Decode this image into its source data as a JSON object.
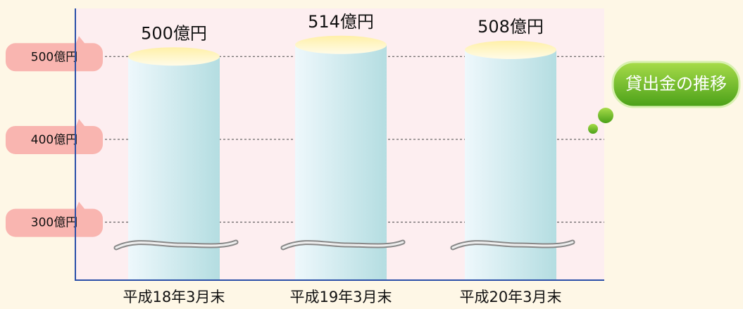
{
  "chart_data": {
    "type": "bar",
    "title": "貸出金の推移",
    "categories": [
      "平成18年3月末",
      "平成19年3月末",
      "平成20年3月末"
    ],
    "values": [
      500,
      514,
      508
    ],
    "value_labels": [
      "500億円",
      "514億円",
      "508億円"
    ],
    "color": "#bfe3e7",
    "ylim": [
      230,
      558
    ],
    "yticks": [
      {
        "value": 300,
        "label": "300億円"
      },
      {
        "value": 400,
        "label": "400億円"
      },
      {
        "value": 500,
        "label": "500億円"
      }
    ],
    "grid": true
  }
}
